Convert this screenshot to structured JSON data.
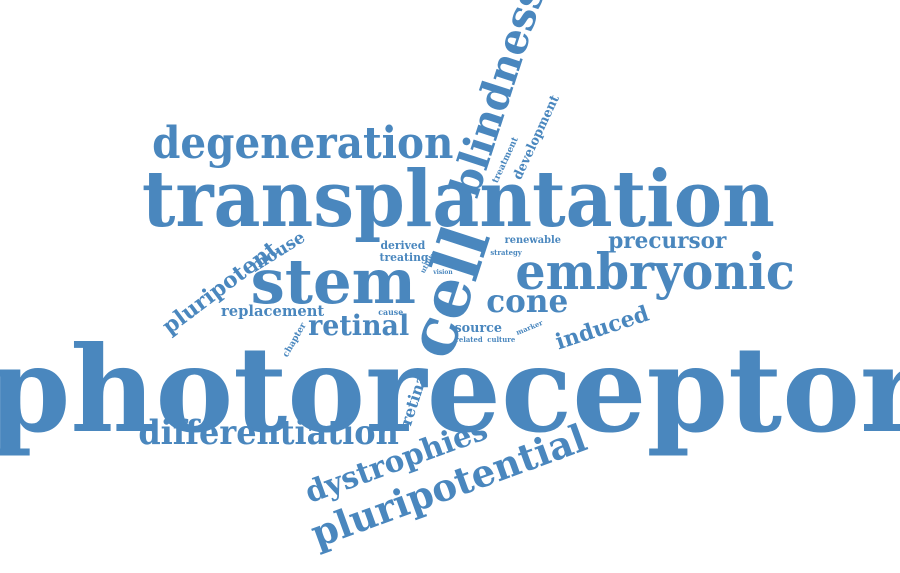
{
  "color": "#4a87be",
  "words": [
    {
      "text": "photoreceptor",
      "name": "word-photoreceptor"
    },
    {
      "text": "transplantation",
      "name": "word-transplantation"
    },
    {
      "text": "stem",
      "name": "word-stem"
    },
    {
      "text": "embryonic",
      "name": "word-embryonic"
    },
    {
      "text": "cell",
      "name": "word-cell"
    },
    {
      "text": "degeneration",
      "name": "word-degeneration"
    },
    {
      "text": "blindness",
      "name": "word-blindness"
    },
    {
      "text": "differentiation",
      "name": "word-differentiation"
    },
    {
      "text": "pluripotential",
      "name": "word-pluripotential"
    },
    {
      "text": "dystrophies",
      "name": "word-dystrophies"
    },
    {
      "text": "cone",
      "name": "word-cone"
    },
    {
      "text": "retinal",
      "name": "word-retinal"
    },
    {
      "text": "precursor",
      "name": "word-precursor"
    },
    {
      "text": "induced",
      "name": "word-induced"
    },
    {
      "text": "pluripotent",
      "name": "word-pluripotent"
    },
    {
      "text": "replacement",
      "name": "word-replacement"
    },
    {
      "text": "mouse",
      "name": "word-mouse"
    },
    {
      "text": "retina",
      "name": "word-retina"
    },
    {
      "text": "source",
      "name": "word-source"
    },
    {
      "text": "derived",
      "name": "word-derived"
    },
    {
      "text": "treating",
      "name": "word-treating"
    },
    {
      "text": "renewable",
      "name": "word-renewable"
    },
    {
      "text": "development",
      "name": "word-development"
    },
    {
      "text": "treatment",
      "name": "word-treatment"
    },
    {
      "text": "strategy",
      "name": "word-strategy"
    },
    {
      "text": "utility",
      "name": "word-utility"
    },
    {
      "text": "chapter",
      "name": "word-chapter"
    },
    {
      "text": "cause",
      "name": "word-cause"
    },
    {
      "text": "vision",
      "name": "word-vision"
    },
    {
      "text": "related",
      "name": "word-related"
    },
    {
      "text": "culture",
      "name": "word-culture"
    },
    {
      "text": "marker",
      "name": "word-marker"
    }
  ]
}
